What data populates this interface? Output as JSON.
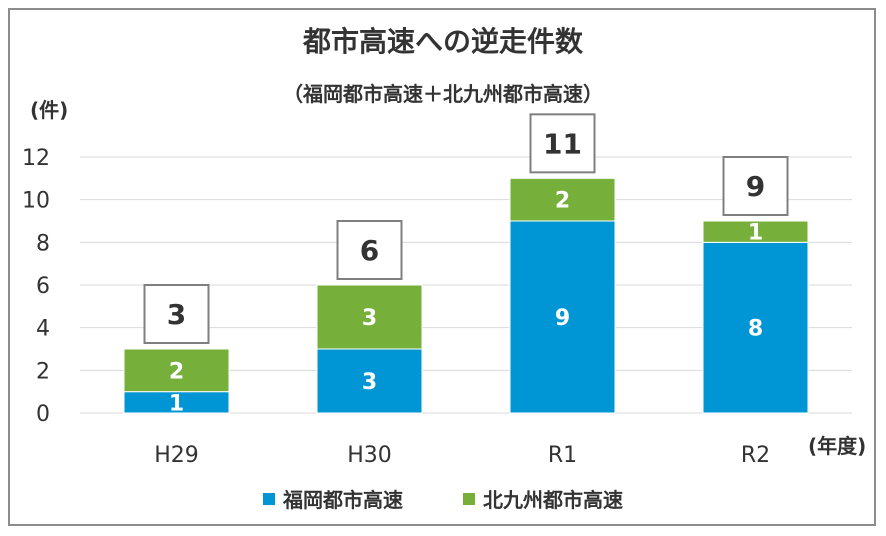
{
  "chart_data": {
    "type": "bar",
    "stacked": true,
    "title": "都市高速への逆走件数",
    "subtitle": "（福岡都市高速＋北九州都市高速）",
    "ylabel": "(件)",
    "xlabel": "(年度)",
    "categories": [
      "H29",
      "H30",
      "R1",
      "R2"
    ],
    "ylim": [
      0,
      12
    ],
    "yticks": [
      0,
      2,
      4,
      6,
      8,
      10,
      12
    ],
    "grid": true,
    "legend_position": "bottom",
    "series": [
      {
        "name": "福岡都市高速",
        "values": [
          1,
          3,
          9,
          8
        ],
        "color": "#0096d6"
      },
      {
        "name": "北九州都市高速",
        "values": [
          2,
          3,
          2,
          1
        ],
        "color": "#76b03a"
      }
    ],
    "totals": [
      3,
      6,
      11,
      9
    ]
  }
}
